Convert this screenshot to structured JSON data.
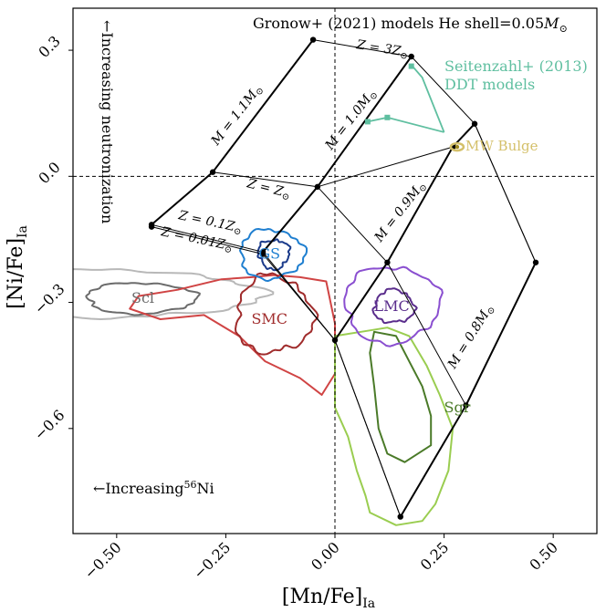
{
  "chart_data": {
    "type": "scatter",
    "title": "",
    "xlabel": "[Mn/Fe]",
    "xlabel_sub": "Ia",
    "ylabel": "[Ni/Fe]",
    "ylabel_sub": "Ia",
    "xlim": [
      -0.6,
      0.6
    ],
    "ylim": [
      -0.85,
      0.4
    ],
    "xticks": [
      {
        "value": -0.5,
        "label": "−0.50"
      },
      {
        "value": -0.25,
        "label": "−0.25"
      },
      {
        "value": 0.0,
        "label": "0.00"
      },
      {
        "value": 0.25,
        "label": "0.25"
      },
      {
        "value": 0.5,
        "label": "0.50"
      }
    ],
    "yticks": [
      {
        "value": 0.3,
        "label": "0.3"
      },
      {
        "value": 0.0,
        "label": "0.0"
      },
      {
        "value": -0.3,
        "label": "−0.3"
      },
      {
        "value": -0.6,
        "label": "−0.6"
      }
    ],
    "grid": false,
    "reference_lines": {
      "x": 0.0,
      "y": 0.0
    },
    "annotations": {
      "model_title_prefix": "Gronow+ (2021) models He shell=0.05",
      "model_title_unit": "M",
      "neutronization": "←Increasing neutronization",
      "nickel_prefix": "←Increasing",
      "nickel_sup": "56",
      "nickel_suffix": "Ni"
    },
    "gronow_grid": {
      "color": "#000000",
      "mass_labels": [
        "M = 1.1M",
        "M = 1.0M",
        "M = 0.9M",
        "M = 0.8M"
      ],
      "z_labels": [
        "Z = 3Z",
        "Z = Z",
        "Z = 0.1Z",
        "Z = 0.01Z"
      ],
      "nodes": {
        "m11": [
          [
            -0.05,
            0.32
          ],
          [
            -0.28,
            0.01
          ],
          [
            -0.42,
            -0.115
          ],
          [
            -0.42,
            -0.12
          ]
        ],
        "m10": [
          [
            0.19,
            0.28
          ],
          [
            -0.04,
            -0.025
          ],
          [
            -0.165,
            -0.18
          ],
          [
            -0.165,
            -0.185
          ]
        ],
        "m09": [
          [
            0.32,
            0.125
          ],
          [
            0.27,
            0.07
          ],
          [
            0.12,
            -0.205
          ],
          [
            0.0,
            -0.39
          ],
          [
            0.0,
            -0.395
          ]
        ],
        "m08": [
          [
            0.18,
            0.28
          ],
          [
            0.46,
            -0.205
          ],
          [
            0.3,
            -0.545
          ],
          [
            0.15,
            -0.81
          ],
          [
            0.15,
            -0.815
          ]
        ]
      }
    },
    "seitenzahl_ddt": {
      "name": "Seitenzahl+ (2013)",
      "name_line2": "DDT models",
      "color": "#5fbfa0",
      "x": [
        0.075,
        0.12,
        0.175,
        0.17
      ],
      "y": [
        0.13,
        0.14,
        0.27,
        0.26
      ]
    },
    "mw_bulge": {
      "name": "MW Bulge",
      "color": "#d4c06a",
      "x": 0.28,
      "y": 0.07
    },
    "galaxies": [
      {
        "name": "Scl",
        "color": "#6b6b6b",
        "outer_color": "#b8b8b8",
        "label_x": -0.44,
        "label_y": -0.29
      },
      {
        "name": "GS",
        "color": "#1f7fd0",
        "label_x": -0.15,
        "label_y": -0.185
      },
      {
        "name": "SMC",
        "color": "#a02c2c",
        "outer_color": "#d04444",
        "label_x": -0.15,
        "label_y": -0.34
      },
      {
        "name": "LMC",
        "color": "#5a2d8c",
        "outer_color": "#8a4fd0",
        "label_x": 0.13,
        "label_y": -0.31
      },
      {
        "name": "Sgr",
        "color": "#4a7a28",
        "outer_color": "#9acd50",
        "label_x": 0.28,
        "label_y": -0.55
      }
    ]
  }
}
